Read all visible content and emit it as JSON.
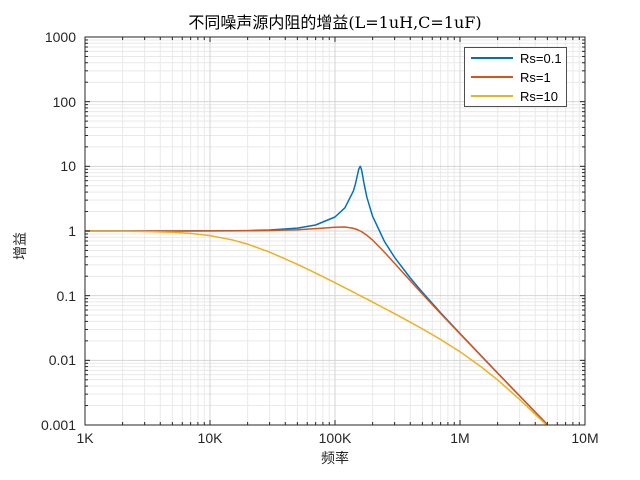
{
  "title": "不同噪声源内阻的增益(L=1uH,C=1uF)",
  "axes": {
    "x": {
      "label": "频率",
      "ticks": [
        {
          "v": 1000,
          "label": "1K"
        },
        {
          "v": 10000,
          "label": "10K"
        },
        {
          "v": 100000,
          "label": "100K"
        },
        {
          "v": 1000000,
          "label": "1M"
        },
        {
          "v": 10000000,
          "label": "10M"
        }
      ]
    },
    "y": {
      "label": "增益",
      "ticks": [
        {
          "v": 1000,
          "label": "1000"
        },
        {
          "v": 100,
          "label": "100"
        },
        {
          "v": 10,
          "label": "10"
        },
        {
          "v": 1,
          "label": "1"
        },
        {
          "v": 0.1,
          "label": "0.1"
        },
        {
          "v": 0.01,
          "label": "0.01"
        },
        {
          "v": 0.001,
          "label": "0.001"
        }
      ]
    }
  },
  "chart_data": {
    "type": "line",
    "title": "不同噪声源内阻的增益(L=1uH,C=1uF)",
    "xlabel": "频率",
    "ylabel": "增益",
    "xscale": "log",
    "yscale": "log",
    "xlim": [
      1000,
      10000000
    ],
    "ylim": [
      0.001,
      1000
    ],
    "grid": "major+minor",
    "legend_position": "top-right",
    "x": [
      1000,
      1500,
      2000,
      3000,
      5000,
      7000,
      10000,
      15000,
      20000,
      30000,
      50000,
      70000,
      100000,
      120000,
      140000,
      145000,
      150000,
      155000,
      159155,
      162000,
      165000,
      170000,
      180000,
      200000,
      250000,
      300000,
      400000,
      500000,
      700000,
      1000000,
      1500000,
      2000000,
      3000000,
      5000000
    ],
    "series": [
      {
        "name": "Rs=0.1",
        "color": "#0072BD",
        "y": [
          1.0,
          1.0001,
          1.0002,
          1.0004,
          1.001,
          1.002,
          1.004,
          1.009,
          1.016,
          1.0368,
          1.1089,
          1.238,
          1.6436,
          2.283,
          4.12,
          5.18,
          6.84,
          9.07,
          10.0,
          9.26,
          7.82,
          5.656,
          3.32,
          1.6875,
          0.6776,
          0.3906,
          0.1879,
          0.1127,
          0.0545,
          0.026,
          0.0114,
          0.00637,
          0.00282,
          0.00101
        ]
      },
      {
        "name": "Rs=1",
        "color": "#D95319",
        "y": [
          1.0,
          1.0,
          1.0001,
          1.0002,
          1.0005,
          1.001,
          1.002,
          1.0044,
          1.0079,
          1.0176,
          1.0477,
          1.0885,
          1.1463,
          1.1511,
          1.101,
          1.0791,
          1.0536,
          1.0254,
          1.0,
          0.9818,
          0.9621,
          0.9282,
          0.8584,
          0.7227,
          0.4652,
          0.3151,
          0.1701,
          0.1063,
          0.053,
          0.0257,
          0.0113,
          0.00635,
          0.00282,
          0.00101
        ]
      },
      {
        "name": "Rs=10",
        "color": "#EDB120",
        "y": [
          0.9981,
          0.9957,
          0.9924,
          0.9831,
          0.9549,
          0.9169,
          0.8491,
          0.7312,
          0.6264,
          0.4723,
          0.306,
          0.2236,
          0.1584,
          0.1324,
          0.1136,
          0.1098,
          0.1061,
          0.1027,
          0.1,
          0.0982,
          0.0965,
          0.0936,
          0.0884,
          0.0795,
          0.0634,
          0.0526,
          0.0389,
          0.0306,
          0.021,
          0.0136,
          0.00776,
          0.00498,
          0.00249,
          0.00097
        ]
      }
    ]
  }
}
